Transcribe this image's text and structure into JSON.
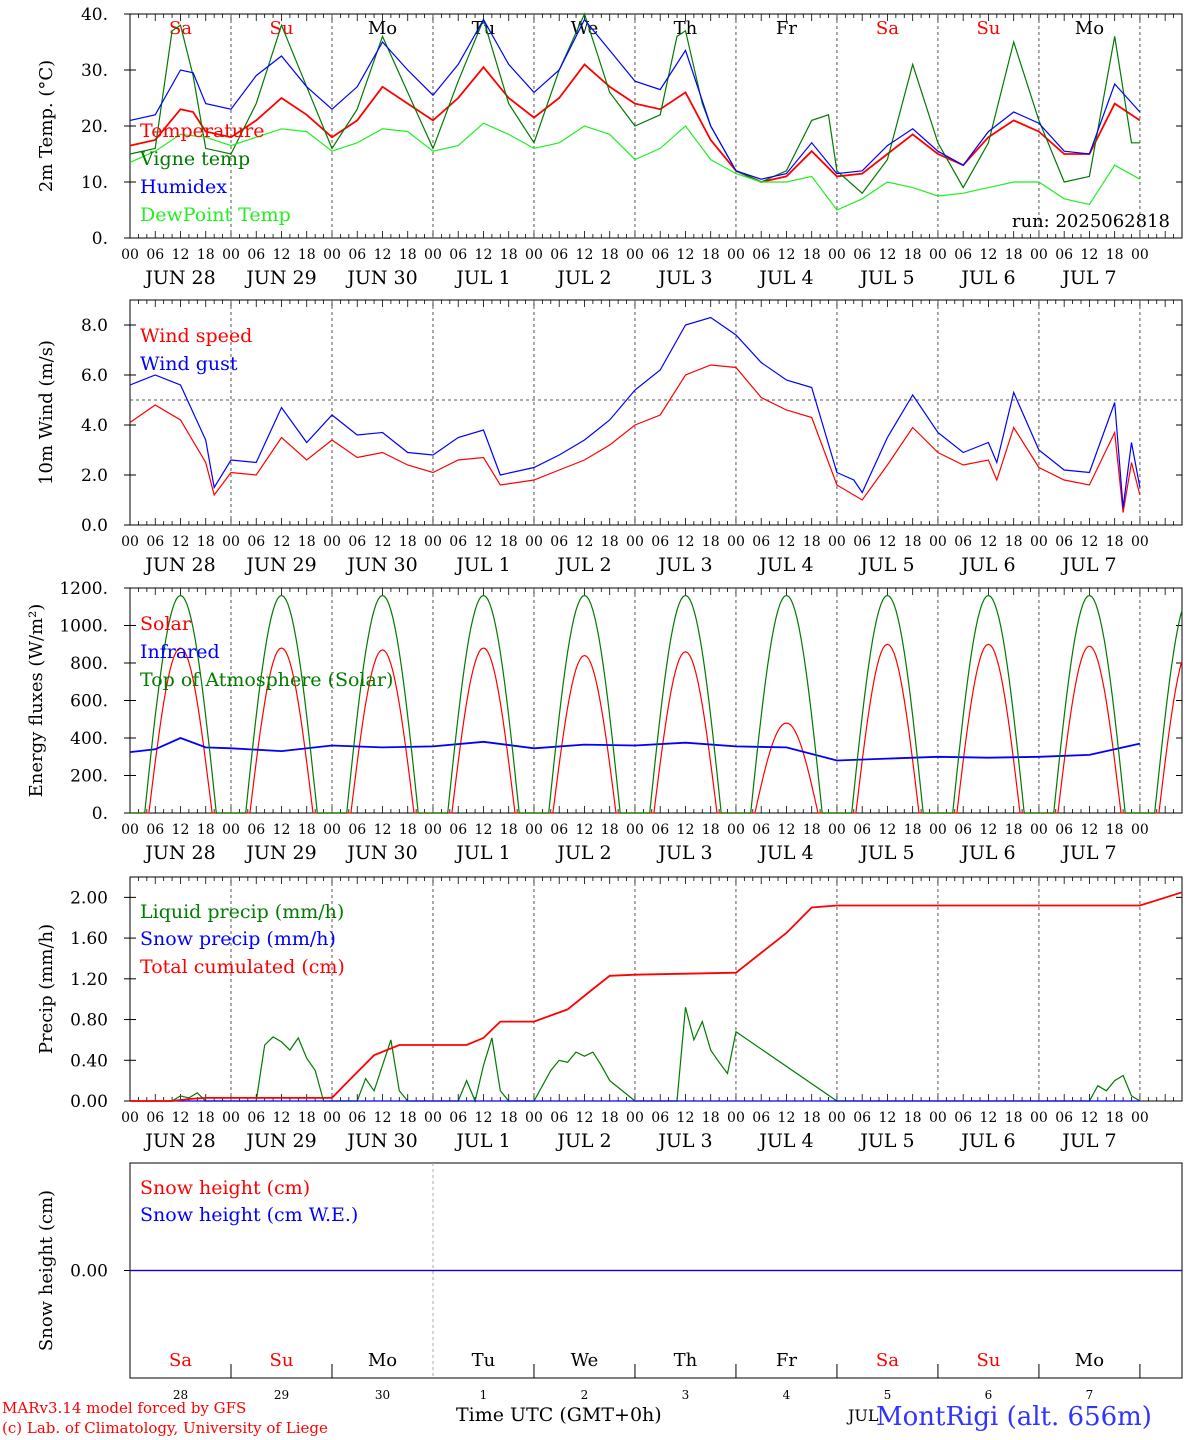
{
  "colors": {
    "red": "#ff0000",
    "green": "#007a00",
    "blue": "#0000ff",
    "lightgreen": "#22ee22",
    "grid": "#555555"
  },
  "days": {
    "dates": [
      "JUN 28",
      "JUN 29",
      "JUN 30",
      "JUL  1",
      "JUL  2",
      "JUL  3",
      "JUL  4",
      "JUL  5",
      "JUL  6",
      "JUL  7"
    ],
    "weekdays": [
      "Sa",
      "Su",
      "Mo",
      "Tu",
      "We",
      "Th",
      "Fr",
      "Sa",
      "Su",
      "Mo"
    ],
    "weekday_colors": [
      "#ff0000",
      "#ff0000",
      "#000000",
      "#000000",
      "#000000",
      "#000000",
      "#000000",
      "#ff0000",
      "#ff0000",
      "#000000"
    ],
    "hours": [
      "00",
      "06",
      "12",
      "18"
    ],
    "day_numbers": [
      "28",
      "29",
      "30",
      "1",
      "2",
      "3",
      "4",
      "5",
      "6",
      "7"
    ]
  },
  "footer": {
    "credit_line1": "MARv3.14 model forced by GFS",
    "credit_line2": "(c) Lab. of Climatology, University of Liege",
    "x_title": "Time UTC (GMT+0h)",
    "month": "JUL",
    "station": "MontRigi (alt. 656m)"
  },
  "chart_data": [
    {
      "type": "line",
      "ylabel": "2m Temp. (°C)",
      "ylim": [
        0,
        40
      ],
      "yticks": [
        "0.",
        "10.",
        "20.",
        "30.",
        "40."
      ],
      "annotation": "run: 2025062818",
      "x_unit": "hours since JUN 28 00 UTC",
      "legend": [
        "Temperature",
        "Vigne temp",
        "Humidex",
        "DewPoint Temp"
      ],
      "series": [
        {
          "name": "Temperature",
          "color": "#ff0000",
          "x": [
            0,
            6,
            12,
            15,
            18,
            24,
            30,
            36,
            42,
            48,
            54,
            60,
            66,
            72,
            78,
            84,
            90,
            96,
            102,
            108,
            114,
            120,
            126,
            132,
            138,
            144,
            150,
            156,
            162,
            168,
            174,
            180,
            186,
            192,
            198,
            204,
            210,
            216,
            222,
            228,
            234,
            240
          ],
          "y": [
            16.5,
            17.5,
            23,
            22.5,
            19,
            18,
            21,
            25,
            22,
            18,
            21,
            27,
            24,
            21,
            25,
            30.5,
            25,
            21.5,
            25,
            31,
            27,
            24,
            23,
            26,
            17.5,
            12,
            10,
            11,
            15.5,
            11,
            11.5,
            15,
            18.5,
            15,
            13,
            18,
            21,
            19,
            15,
            15,
            24,
            21
          ]
        },
        {
          "name": "Vigne temp",
          "color": "#007a00",
          "x": [
            0,
            6,
            10,
            12,
            15,
            18,
            24,
            30,
            36,
            42,
            48,
            54,
            60,
            66,
            72,
            78,
            84,
            90,
            96,
            102,
            108,
            114,
            120,
            126,
            130,
            132,
            136,
            138,
            144,
            150,
            156,
            162,
            166,
            168,
            174,
            180,
            186,
            192,
            198,
            204,
            210,
            216,
            222,
            228,
            234,
            238,
            240
          ],
          "y": [
            15,
            16,
            37,
            38,
            29,
            16,
            15,
            24,
            38,
            27,
            16,
            23,
            36,
            26,
            16,
            28,
            39,
            24,
            17,
            30,
            40,
            26,
            20,
            22,
            36,
            37,
            24,
            20,
            12,
            10,
            12,
            21,
            22,
            12,
            8,
            14,
            31,
            17,
            9,
            17,
            35,
            21,
            10,
            11,
            36,
            17,
            17
          ]
        },
        {
          "name": "Humidex",
          "color": "#0000ff",
          "x": [
            0,
            6,
            12,
            15,
            18,
            24,
            30,
            36,
            42,
            48,
            54,
            60,
            66,
            72,
            78,
            84,
            90,
            96,
            102,
            108,
            114,
            120,
            126,
            132,
            138,
            144,
            150,
            156,
            162,
            168,
            174,
            180,
            186,
            192,
            198,
            204,
            210,
            216,
            222,
            228,
            234,
            240
          ],
          "y": [
            21,
            22,
            30,
            29.5,
            24,
            23,
            29,
            32.5,
            27,
            23,
            27,
            35,
            30,
            25.5,
            31,
            39,
            31,
            26,
            30,
            39,
            33.5,
            28,
            26.5,
            33.5,
            20,
            12,
            10.5,
            11.5,
            17,
            11.5,
            12,
            16.5,
            19.5,
            15.5,
            13,
            19,
            22.5,
            20.5,
            15.5,
            15,
            27.5,
            22.5
          ]
        },
        {
          "name": "DewPoint Temp",
          "color": "#22ee22",
          "x": [
            0,
            6,
            12,
            18,
            24,
            30,
            36,
            42,
            48,
            54,
            60,
            66,
            72,
            78,
            84,
            90,
            96,
            102,
            108,
            114,
            120,
            126,
            132,
            138,
            144,
            150,
            156,
            162,
            168,
            174,
            180,
            186,
            192,
            198,
            204,
            210,
            216,
            222,
            228,
            234,
            240
          ],
          "y": [
            13.5,
            15.5,
            18.5,
            18,
            16.5,
            18,
            19.5,
            19,
            15.5,
            17,
            19.5,
            19,
            15.5,
            16.5,
            20.5,
            18.5,
            16,
            17,
            20,
            18.5,
            14,
            16,
            20,
            14,
            11.5,
            10,
            10,
            11,
            5,
            7,
            10,
            9,
            7.5,
            8,
            9,
            10,
            10,
            7,
            6,
            13,
            10.5
          ]
        }
      ]
    },
    {
      "type": "line",
      "ylabel": "10m Wind (m/s)",
      "ylim": [
        0,
        9
      ],
      "yticks": [
        "0.0",
        "2.0",
        "4.0",
        "6.0",
        "8.0"
      ],
      "reference_line": 5.0,
      "x_unit": "hours since JUN 28 00 UTC",
      "legend": [
        "Wind speed",
        "Wind gust"
      ],
      "series": [
        {
          "name": "Wind speed",
          "color": "#ff0000",
          "x": [
            0,
            6,
            12,
            18,
            20,
            24,
            30,
            36,
            42,
            48,
            54,
            60,
            66,
            72,
            78,
            84,
            88,
            96,
            102,
            108,
            114,
            120,
            126,
            132,
            138,
            144,
            150,
            156,
            162,
            168,
            172,
            174,
            180,
            186,
            192,
            198,
            204,
            206,
            210,
            216,
            222,
            228,
            234,
            236,
            238,
            240
          ],
          "y": [
            4.1,
            4.8,
            4.2,
            2.5,
            1.2,
            2.1,
            2.0,
            3.5,
            2.6,
            3.4,
            2.7,
            2.9,
            2.4,
            2.1,
            2.6,
            2.7,
            1.6,
            1.8,
            2.2,
            2.6,
            3.2,
            4.0,
            4.4,
            6.0,
            6.4,
            6.3,
            5.1,
            4.6,
            4.3,
            1.6,
            1.2,
            1.0,
            2.4,
            3.9,
            2.9,
            2.4,
            2.6,
            1.8,
            3.9,
            2.3,
            1.8,
            1.6,
            3.7,
            0.5,
            2.5,
            1.2
          ]
        },
        {
          "name": "Wind gust",
          "color": "#0000ff",
          "x": [
            0,
            6,
            12,
            18,
            20,
            24,
            30,
            36,
            42,
            48,
            54,
            60,
            66,
            72,
            78,
            84,
            88,
            96,
            102,
            108,
            114,
            120,
            126,
            132,
            138,
            144,
            150,
            156,
            162,
            168,
            172,
            174,
            180,
            186,
            192,
            198,
            204,
            206,
            210,
            216,
            222,
            228,
            234,
            236,
            238,
            240
          ],
          "y": [
            5.6,
            6.0,
            5.6,
            3.4,
            1.5,
            2.6,
            2.5,
            4.7,
            3.3,
            4.4,
            3.6,
            3.7,
            2.9,
            2.8,
            3.5,
            3.8,
            2.0,
            2.3,
            2.8,
            3.4,
            4.2,
            5.4,
            6.2,
            8.0,
            8.3,
            7.6,
            6.5,
            5.8,
            5.5,
            2.1,
            1.8,
            1.3,
            3.5,
            5.2,
            3.7,
            2.9,
            3.3,
            2.5,
            5.3,
            3.0,
            2.2,
            2.1,
            4.9,
            0.7,
            3.3,
            1.5
          ]
        }
      ]
    },
    {
      "type": "line",
      "ylabel": "Energy fluxes (W/m²)",
      "ylim": [
        0,
        1200
      ],
      "yticks": [
        "0.",
        "200.",
        "400.",
        "600.",
        "800.",
        "1000.",
        "1200."
      ],
      "x_unit": "hours since JUN 28 00 UTC",
      "legend": [
        "Solar",
        "Infrared",
        "Top of Atmosphere (Solar)"
      ],
      "series": [
        {
          "name": "Solar",
          "color": "#ff0000",
          "peak_hours": [
            12,
            12,
            12,
            12,
            12,
            12,
            12,
            12,
            12,
            12
          ],
          "daily_peak": [
            880,
            880,
            870,
            880,
            840,
            860,
            480,
            900,
            900,
            890
          ]
        },
        {
          "name": "Infrared",
          "color": "#0000ff",
          "x": [
            0,
            6,
            12,
            18,
            24,
            36,
            48,
            60,
            72,
            84,
            96,
            108,
            120,
            132,
            144,
            156,
            168,
            180,
            192,
            204,
            216,
            228,
            240
          ],
          "y": [
            325,
            340,
            400,
            350,
            345,
            330,
            360,
            350,
            355,
            380,
            345,
            365,
            360,
            375,
            355,
            350,
            280,
            290,
            300,
            295,
            300,
            310,
            370
          ]
        },
        {
          "name": "Top of Atmosphere (Solar)",
          "color": "#007a00",
          "peak_hours": [
            12,
            12,
            12,
            12,
            12,
            12,
            12,
            12,
            12,
            12
          ],
          "daily_peak": [
            1160,
            1160,
            1160,
            1160,
            1160,
            1160,
            1160,
            1160,
            1160,
            1160
          ]
        }
      ]
    },
    {
      "type": "line",
      "ylabel": "Precip (mm/h)",
      "ylim": [
        0,
        2.2
      ],
      "yticks": [
        "0.00",
        "0.40",
        "0.80",
        "1.20",
        "1.60",
        "2.00"
      ],
      "x_unit": "hours since JUN 28 00 UTC",
      "legend": [
        "Liquid precip (mm/h)",
        "Snow precip (mm/h)",
        "Total cumulated (cm)"
      ],
      "series": [
        {
          "name": "Liquid precip (mm/h)",
          "color": "#007a00",
          "x": [
            0,
            10,
            12,
            14,
            16,
            18,
            24,
            30,
            32,
            34,
            36,
            38,
            40,
            42,
            44,
            46,
            48,
            54,
            56,
            58,
            60,
            62,
            64,
            66,
            68,
            72,
            78,
            80,
            82,
            84,
            86,
            88,
            90,
            96,
            100,
            102,
            104,
            106,
            108,
            110,
            112,
            114,
            120,
            130,
            132,
            134,
            136,
            138,
            140,
            142,
            144,
            168,
            216,
            228,
            230,
            232,
            234,
            236,
            238,
            240
          ],
          "y": [
            0,
            0,
            0.05,
            0.03,
            0.08,
            0,
            0,
            0,
            0.55,
            0.63,
            0.58,
            0.5,
            0.62,
            0.42,
            0.3,
            0,
            0,
            0,
            0.22,
            0.1,
            0.35,
            0.6,
            0.1,
            0,
            0,
            0,
            0,
            0.2,
            0,
            0.35,
            0.62,
            0.1,
            0,
            0,
            0.3,
            0.4,
            0.38,
            0.48,
            0.44,
            0.48,
            0.35,
            0.2,
            0,
            0,
            0.92,
            0.6,
            0.78,
            0.5,
            0.38,
            0.27,
            0.68,
            0,
            0,
            0,
            0.15,
            0.1,
            0.2,
            0.25,
            0.05,
            0
          ]
        },
        {
          "name": "Snow precip (mm/h)",
          "color": "#0000ff",
          "x": [
            0,
            240
          ],
          "y": [
            0,
            0
          ]
        },
        {
          "name": "Total cumulated (cm)",
          "color": "#ff0000",
          "x": [
            0,
            10,
            14,
            18,
            24,
            48,
            52,
            58,
            64,
            72,
            80,
            84,
            88,
            96,
            104,
            110,
            114,
            120,
            144,
            156,
            162,
            168,
            240,
            250
          ],
          "y": [
            0,
            0,
            0.02,
            0.03,
            0.03,
            0.03,
            0.2,
            0.45,
            0.55,
            0.55,
            0.55,
            0.62,
            0.78,
            0.78,
            0.9,
            1.1,
            1.23,
            1.24,
            1.26,
            1.65,
            1.9,
            1.92,
            1.92,
            2.05
          ]
        }
      ]
    },
    {
      "type": "line",
      "ylabel": "Snow height (cm)",
      "ylim": [
        -1,
        1
      ],
      "yticks": [
        "0.00"
      ],
      "x_unit": "hours since JUN 28 00 UTC",
      "legend": [
        "Snow height (cm)",
        "Snow height (cm W.E.)"
      ],
      "series": [
        {
          "name": "Snow height (cm)",
          "color": "#ff0000",
          "x": [
            0,
            250
          ],
          "y": [
            0,
            0
          ]
        },
        {
          "name": "Snow height (cm W.E.)",
          "color": "#0000ff",
          "x": [
            0,
            250
          ],
          "y": [
            0,
            0
          ]
        }
      ]
    }
  ]
}
